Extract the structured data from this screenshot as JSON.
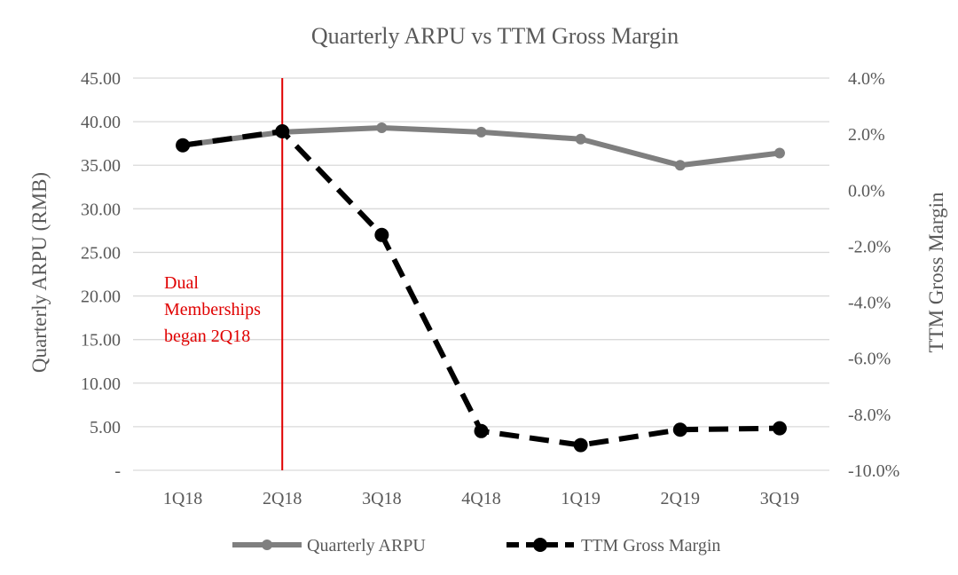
{
  "chart_data": {
    "type": "line",
    "title": "Quarterly ARPU vs TTM Gross Margin",
    "categories": [
      "1Q18",
      "2Q18",
      "3Q18",
      "4Q18",
      "1Q19",
      "2Q19",
      "3Q19"
    ],
    "y_left": {
      "label": "Quarterly ARPU (RMB)",
      "min": 0,
      "max": 45,
      "step": 5,
      "tick_labels": [
        "-",
        "5.00",
        "10.00",
        "15.00",
        "20.00",
        "25.00",
        "30.00",
        "35.00",
        "40.00",
        "45.00"
      ]
    },
    "y_right": {
      "label": "TTM Gross Margin",
      "min": -10,
      "max": 4,
      "step": 2,
      "tick_labels": [
        "-10.0%",
        "-8.0%",
        "-6.0%",
        "-4.0%",
        "-2.0%",
        "0.0%",
        "2.0%",
        "4.0%"
      ]
    },
    "series": [
      {
        "name": "Quarterly ARPU",
        "axis": "left",
        "style": "solid",
        "color": "#7f7f7f",
        "values": [
          37.3,
          38.8,
          39.3,
          38.8,
          38.0,
          35.0,
          36.4
        ]
      },
      {
        "name": "TTM Gross Margin",
        "axis": "right",
        "style": "dashed",
        "color": "#000000",
        "values": [
          1.6,
          2.1,
          -1.6,
          -8.6,
          -9.1,
          -8.55,
          -8.5
        ]
      }
    ],
    "annotation": {
      "lines": [
        "Dual",
        "Memberships",
        "began 2Q18"
      ],
      "color": "#e00000",
      "at_category": "2Q18"
    },
    "grid": true,
    "legend_position": "bottom"
  }
}
